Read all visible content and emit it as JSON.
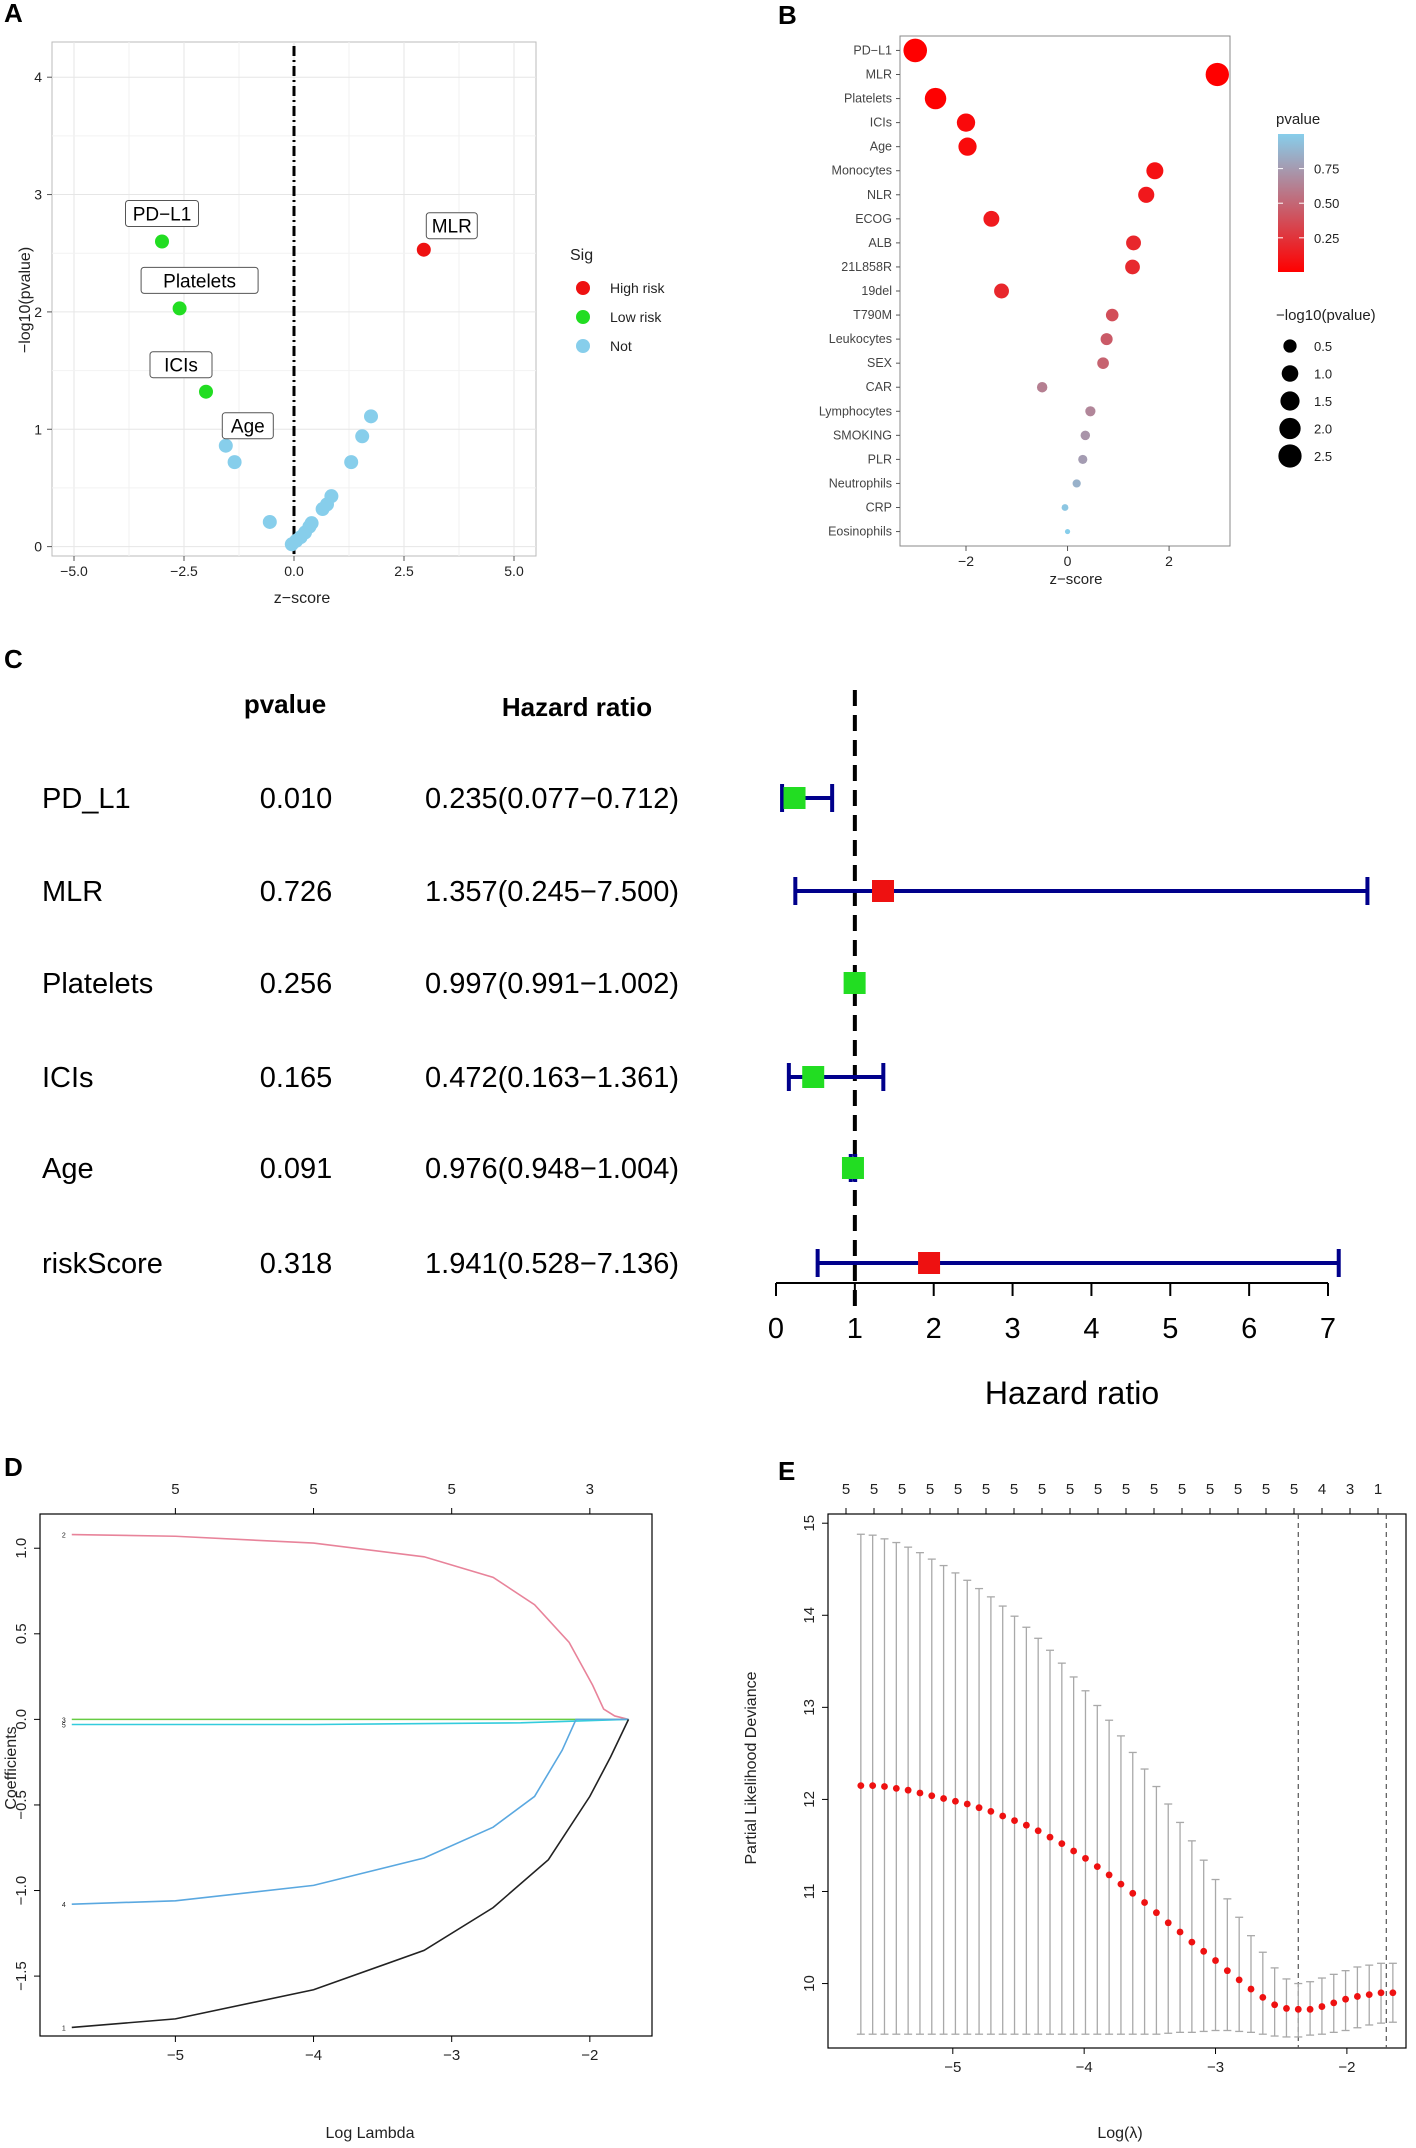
{
  "figure": {
    "panel_labels": [
      "A",
      "B",
      "C",
      "D",
      "E"
    ]
  },
  "chart_data": [
    {
      "panel": "A",
      "type": "scatter",
      "xlabel": "z−score",
      "ylabel": "−log10(pvalue)",
      "xlim": [
        -5.5,
        5.5
      ],
      "ylim": [
        -0.08,
        4.3
      ],
      "xticks": [
        -5,
        -2.5,
        0,
        2.5,
        5
      ],
      "xtick_labels": [
        "−5.0",
        "−2.5",
        "0.0",
        "2.5",
        "5.0"
      ],
      "yticks": [
        0,
        1,
        2,
        3,
        4
      ],
      "ytick_labels": [
        "0",
        "1",
        "2",
        "3",
        "4"
      ],
      "legend": {
        "title": "Sig",
        "entries": [
          {
            "label": "High risk",
            "color": "#ee1111"
          },
          {
            "label": "Low risk",
            "color": "#22dd22"
          },
          {
            "label": "Not",
            "color": "#87ceeb"
          }
        ]
      },
      "points": [
        {
          "x": -3.0,
          "y": 2.6,
          "group": "Low risk"
        },
        {
          "x": -2.6,
          "y": 2.03,
          "group": "Low risk"
        },
        {
          "x": -2.0,
          "y": 1.32,
          "group": "Low risk"
        },
        {
          "x": 2.95,
          "y": 2.53,
          "group": "High risk"
        },
        {
          "x": -1.55,
          "y": 0.86,
          "group": "Not"
        },
        {
          "x": -1.35,
          "y": 0.72,
          "group": "Not"
        },
        {
          "x": -0.55,
          "y": 0.21,
          "group": "Not"
        },
        {
          "x": -0.05,
          "y": 0.02,
          "group": "Not"
        },
        {
          "x": 0.05,
          "y": 0.05,
          "group": "Not"
        },
        {
          "x": 0.15,
          "y": 0.08,
          "group": "Not"
        },
        {
          "x": 0.25,
          "y": 0.12,
          "group": "Not"
        },
        {
          "x": 0.35,
          "y": 0.17,
          "group": "Not"
        },
        {
          "x": 0.4,
          "y": 0.2,
          "group": "Not"
        },
        {
          "x": 0.65,
          "y": 0.32,
          "group": "Not"
        },
        {
          "x": 0.75,
          "y": 0.36,
          "group": "Not"
        },
        {
          "x": 0.85,
          "y": 0.43,
          "group": "Not"
        },
        {
          "x": 1.3,
          "y": 0.72,
          "group": "Not"
        },
        {
          "x": 1.55,
          "y": 0.94,
          "group": "Not"
        },
        {
          "x": 1.75,
          "y": 1.11,
          "group": "Not"
        }
      ],
      "annotations": [
        {
          "text": "PD−L1",
          "x": -3.0,
          "y": 2.6
        },
        {
          "text": "Platelets",
          "x": -2.6,
          "y": 2.03
        },
        {
          "text": "ICIs",
          "x": -2.0,
          "y": 1.32
        },
        {
          "text": "Age",
          "x": -1.55,
          "y": 0.86
        },
        {
          "text": "MLR",
          "x": 2.95,
          "y": 2.53
        }
      ]
    },
    {
      "panel": "B",
      "type": "scatter",
      "subtype": "dot",
      "xlabel": "z−score",
      "xlim": [
        -3.3,
        3.2
      ],
      "xticks": [
        -2,
        0,
        2
      ],
      "xtick_labels": [
        "−2",
        "0",
        "2"
      ],
      "categories": [
        "PD−L1",
        "MLR",
        "Platelets",
        "ICIs",
        "Age",
        "Monocytes",
        "NLR",
        "ECOG",
        "ALB",
        "21L858R",
        "19del",
        "T790M",
        "Leukocytes",
        "SEX",
        "CAR",
        "Lymphocytes",
        "SMOKING",
        "PLR",
        "Neutrophils",
        "CRP",
        "Eosinophils"
      ],
      "zscore": [
        -3.0,
        2.95,
        -2.6,
        -2.0,
        -1.97,
        1.72,
        1.55,
        -1.5,
        1.3,
        1.28,
        -1.3,
        0.88,
        0.77,
        0.7,
        -0.5,
        0.45,
        0.35,
        0.3,
        0.18,
        -0.05,
        0.0
      ],
      "pvalue": [
        0.003,
        0.003,
        0.009,
        0.048,
        0.05,
        0.085,
        0.12,
        0.13,
        0.19,
        0.2,
        0.19,
        0.38,
        0.44,
        0.48,
        0.62,
        0.65,
        0.72,
        0.76,
        0.86,
        0.96,
        1.0
      ],
      "neglog10p": [
        2.6,
        2.53,
        2.03,
        1.32,
        1.3,
        1.07,
        0.92,
        0.88,
        0.72,
        0.7,
        0.72,
        0.42,
        0.36,
        0.32,
        0.21,
        0.19,
        0.14,
        0.12,
        0.07,
        0.02,
        0.0
      ],
      "color_legend": {
        "title": "pvalue",
        "ticks": [
          0.75,
          0.5,
          0.25
        ],
        "tick_labels": [
          "0.75",
          "0.50",
          "0.25"
        ],
        "low_color": "#ff0000",
        "high_color": "#87ceeb"
      },
      "size_legend": {
        "title": "−log10(pvalue)",
        "values": [
          0.5,
          1.0,
          1.5,
          2.0,
          2.5
        ],
        "labels": [
          "0.5",
          "1.0",
          "1.5",
          "2.0",
          "2.5"
        ]
      }
    },
    {
      "panel": "C",
      "type": "forest",
      "col_headers": {
        "pvalue": "pvalue",
        "hr": "Hazard ratio"
      },
      "rows": [
        {
          "name": "PD_L1",
          "pvalue": "0.010",
          "hr_text": "0.235(0.077−0.712)",
          "hr": 0.235,
          "lo": 0.077,
          "hi": 0.712,
          "color": "#22dd22"
        },
        {
          "name": "MLR",
          "pvalue": "0.726",
          "hr_text": "1.357(0.245−7.500)",
          "hr": 1.357,
          "lo": 0.245,
          "hi": 7.5,
          "color": "#ee1111"
        },
        {
          "name": "Platelets",
          "pvalue": "0.256",
          "hr_text": "0.997(0.991−1.002)",
          "hr": 0.997,
          "lo": 0.991,
          "hi": 1.002,
          "color": "#22dd22"
        },
        {
          "name": "ICIs",
          "pvalue": "0.165",
          "hr_text": "0.472(0.163−1.361)",
          "hr": 0.472,
          "lo": 0.163,
          "hi": 1.361,
          "color": "#22dd22"
        },
        {
          "name": "Age",
          "pvalue": "0.091",
          "hr_text": "0.976(0.948−1.004)",
          "hr": 0.976,
          "lo": 0.948,
          "hi": 1.004,
          "color": "#22dd22"
        },
        {
          "name": "riskScore",
          "pvalue": "0.318",
          "hr_text": "1.941(0.528−7.136)",
          "hr": 1.941,
          "lo": 0.528,
          "hi": 7.136,
          "color": "#ee1111"
        }
      ],
      "xlabel": "Hazard ratio",
      "xlim": [
        0,
        7
      ],
      "xticks": [
        0,
        1,
        2,
        3,
        4,
        5,
        6,
        7
      ],
      "xtick_labels": [
        "0",
        "1",
        "2",
        "3",
        "4",
        "5",
        "6",
        "7"
      ],
      "reference": 1
    },
    {
      "panel": "D",
      "type": "line",
      "xlabel": "Log Lambda",
      "ylabel": "Coefficients",
      "xlim": [
        -5.98,
        -1.55
      ],
      "ylim": [
        -1.85,
        1.2
      ],
      "xticks": [
        -5,
        -4,
        -3,
        -2
      ],
      "xtick_labels": [
        "−5",
        "−4",
        "−3",
        "−2"
      ],
      "yticks": [
        -1.5,
        -1.0,
        -0.5,
        0.0,
        0.5,
        1.0
      ],
      "ytick_labels": [
        "−1.5",
        "−1.0",
        "−0.5",
        "0.0",
        "0.5",
        "1.0"
      ],
      "top_axis": {
        "positions": [
          -5,
          -4,
          -3,
          -2
        ],
        "labels": [
          "5",
          "5",
          "5",
          "3"
        ]
      },
      "series": [
        {
          "name": "2",
          "color": "#e8839a",
          "x": [
            -5.75,
            -5.0,
            -4.0,
            -3.2,
            -2.7,
            -2.4,
            -2.15,
            -1.98,
            -1.9,
            -1.82,
            -1.72
          ],
          "y": [
            1.08,
            1.07,
            1.03,
            0.95,
            0.83,
            0.67,
            0.45,
            0.2,
            0.06,
            0.02,
            0.0
          ]
        },
        {
          "name": "3",
          "color": "#66cc44",
          "x": [
            -5.75,
            -1.72
          ],
          "y": [
            0.0,
            0.0
          ]
        },
        {
          "name": "5",
          "color": "#33ccdd",
          "x": [
            -5.75,
            -4.0,
            -2.5,
            -2.1,
            -1.72
          ],
          "y": [
            -0.03,
            -0.03,
            -0.02,
            -0.01,
            0.0
          ]
        },
        {
          "name": "4",
          "color": "#5aa8e0",
          "x": [
            -5.75,
            -5.0,
            -4.0,
            -3.2,
            -2.7,
            -2.4,
            -2.2,
            -2.1,
            -1.72
          ],
          "y": [
            -1.08,
            -1.06,
            -0.97,
            -0.81,
            -0.63,
            -0.45,
            -0.18,
            0.0,
            0.0
          ]
        },
        {
          "name": "1",
          "color": "#222222",
          "x": [
            -5.75,
            -5.0,
            -4.0,
            -3.2,
            -2.7,
            -2.3,
            -2.0,
            -1.85,
            -1.72
          ],
          "y": [
            -1.8,
            -1.75,
            -1.58,
            -1.35,
            -1.1,
            -0.82,
            -0.45,
            -0.22,
            0.0
          ]
        }
      ],
      "line_labels": [
        "2",
        "3",
        "5",
        "4",
        "1"
      ]
    },
    {
      "panel": "E",
      "type": "scatter",
      "subtype": "errorbar",
      "xlabel": "Log(λ)",
      "ylabel": "Partial Likelihood Deviance",
      "xlim": [
        -5.95,
        -1.55
      ],
      "ylim": [
        9.3,
        15.1
      ],
      "xticks": [
        -5,
        -4,
        -3,
        -2
      ],
      "xtick_labels": [
        "−5",
        "−4",
        "−3",
        "−2"
      ],
      "yticks": [
        10,
        11,
        12,
        13,
        14,
        15
      ],
      "ytick_labels": [
        "10",
        "11",
        "12",
        "13",
        "14",
        "15"
      ],
      "vlines": [
        -2.37,
        -1.7
      ],
      "top_axis": {
        "labels": [
          "5",
          "5",
          "5",
          "5",
          "5",
          "5",
          "5",
          "5",
          "5",
          "5",
          "5",
          "5",
          "5",
          "5",
          "5",
          "5",
          "5",
          "4",
          "3",
          "1"
        ]
      },
      "x": [
        -5.7,
        -5.61,
        -5.52,
        -5.43,
        -5.34,
        -5.25,
        -5.16,
        -5.07,
        -4.98,
        -4.89,
        -4.8,
        -4.71,
        -4.62,
        -4.53,
        -4.44,
        -4.35,
        -4.26,
        -4.17,
        -4.08,
        -3.99,
        -3.9,
        -3.81,
        -3.72,
        -3.63,
        -3.54,
        -3.45,
        -3.36,
        -3.27,
        -3.18,
        -3.09,
        -3.0,
        -2.91,
        -2.82,
        -2.73,
        -2.64,
        -2.55,
        -2.46,
        -2.37,
        -2.28,
        -2.19,
        -2.1,
        -2.01,
        -1.92,
        -1.83,
        -1.74,
        -1.65
      ],
      "mean": [
        12.15,
        12.15,
        12.14,
        12.12,
        12.1,
        12.07,
        12.04,
        12.01,
        11.98,
        11.95,
        11.91,
        11.87,
        11.82,
        11.77,
        11.72,
        11.66,
        11.59,
        11.52,
        11.44,
        11.36,
        11.27,
        11.18,
        11.08,
        10.98,
        10.88,
        10.77,
        10.66,
        10.56,
        10.45,
        10.35,
        10.25,
        10.14,
        10.04,
        9.94,
        9.85,
        9.77,
        9.73,
        9.72,
        9.72,
        9.75,
        9.79,
        9.83,
        9.86,
        9.88,
        9.9,
        9.9
      ],
      "upper": [
        14.88,
        14.87,
        14.83,
        14.79,
        14.74,
        14.68,
        14.61,
        14.54,
        14.46,
        14.38,
        14.29,
        14.2,
        14.1,
        13.99,
        13.87,
        13.75,
        13.62,
        13.48,
        13.33,
        13.18,
        13.02,
        12.86,
        12.69,
        12.51,
        12.33,
        12.14,
        11.95,
        11.75,
        11.55,
        11.34,
        11.13,
        10.92,
        10.72,
        10.52,
        10.34,
        10.17,
        10.05,
        10.0,
        10.02,
        10.06,
        10.1,
        10.14,
        10.18,
        10.2,
        10.22,
        10.22
      ],
      "lower": [
        9.45,
        9.45,
        9.45,
        9.45,
        9.45,
        9.45,
        9.45,
        9.45,
        9.45,
        9.45,
        9.45,
        9.45,
        9.45,
        9.45,
        9.45,
        9.45,
        9.45,
        9.45,
        9.45,
        9.45,
        9.45,
        9.45,
        9.45,
        9.45,
        9.45,
        9.45,
        9.46,
        9.47,
        9.47,
        9.48,
        9.49,
        9.49,
        9.48,
        9.47,
        9.45,
        9.43,
        9.42,
        9.42,
        9.44,
        9.45,
        9.47,
        9.49,
        9.52,
        9.55,
        9.57,
        9.58
      ]
    }
  ]
}
